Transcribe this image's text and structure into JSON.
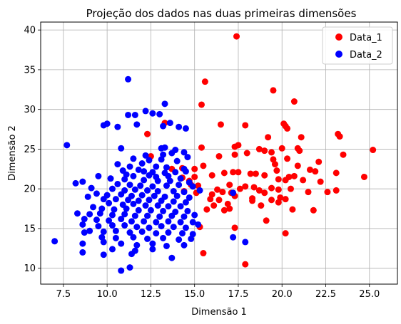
{
  "chart_data": {
    "type": "scatter",
    "title": "Projeção dos dados nas duas primeiras dimensões",
    "xlabel": "Dimensão 1",
    "ylabel": "Dimensão 2",
    "xlim": [
      6.2,
      26.6
    ],
    "ylim": [
      8.0,
      41.0
    ],
    "xticks": [
      7.5,
      10.0,
      12.5,
      15.0,
      17.5,
      20.0,
      22.5,
      25.0
    ],
    "xtick_labels": [
      "7.5",
      "10.0",
      "12.5",
      "15.0",
      "17.5",
      "20.0",
      "22.5",
      "25.0"
    ],
    "yticks": [
      10,
      15,
      20,
      25,
      30,
      35,
      40
    ],
    "ytick_labels": [
      "10",
      "15",
      "20",
      "25",
      "30",
      "35",
      "40"
    ],
    "grid": true,
    "legend_position": "top-right",
    "series": [
      {
        "name": "Data_1",
        "color": "#ff0000",
        "points": [
          [
            17.4,
            39.2
          ],
          [
            15.6,
            33.5
          ],
          [
            19.5,
            32.4
          ],
          [
            20.7,
            31.0
          ],
          [
            15.4,
            30.6
          ],
          [
            20.2,
            27.9
          ],
          [
            16.5,
            28.1
          ],
          [
            13.3,
            28.3
          ],
          [
            12.3,
            26.9
          ],
          [
            17.9,
            28.0
          ],
          [
            20.1,
            28.2
          ],
          [
            20.3,
            27.6
          ],
          [
            19.2,
            26.5
          ],
          [
            21.1,
            26.5
          ],
          [
            23.2,
            26.9
          ],
          [
            23.3,
            26.6
          ],
          [
            17.5,
            25.5
          ],
          [
            17.3,
            25.3
          ],
          [
            15.4,
            25.2
          ],
          [
            19.0,
            24.8
          ],
          [
            19.4,
            24.6
          ],
          [
            20.0,
            25.1
          ],
          [
            20.9,
            25.1
          ],
          [
            21.0,
            24.8
          ],
          [
            18.7,
            25.0
          ],
          [
            23.5,
            24.3
          ],
          [
            25.2,
            24.9
          ],
          [
            18.0,
            24.5
          ],
          [
            17.3,
            24.3
          ],
          [
            16.4,
            24.1
          ],
          [
            12.5,
            24.1
          ],
          [
            19.5,
            23.7
          ],
          [
            20.3,
            23.8
          ],
          [
            19.6,
            23.1
          ],
          [
            22.1,
            23.4
          ],
          [
            20.9,
            22.9
          ],
          [
            15.5,
            22.9
          ],
          [
            14.3,
            22.6
          ],
          [
            15.0,
            22.5
          ],
          [
            13.7,
            22.5
          ],
          [
            17.2,
            22.1
          ],
          [
            17.5,
            22.1
          ],
          [
            16.7,
            22.0
          ],
          [
            19.7,
            22.3
          ],
          [
            21.9,
            22.2
          ],
          [
            21.6,
            22.4
          ],
          [
            18.2,
            21.9
          ],
          [
            18.5,
            21.9
          ],
          [
            19.0,
            21.7
          ],
          [
            20.7,
            21.6
          ],
          [
            20.4,
            21.5
          ],
          [
            16.0,
            21.7
          ],
          [
            15.0,
            21.5
          ],
          [
            14.3,
            21.4
          ],
          [
            14.7,
            21.0
          ],
          [
            19.8,
            21.2
          ],
          [
            20.2,
            21.1
          ],
          [
            23.1,
            22.0
          ],
          [
            24.7,
            21.5
          ],
          [
            21.2,
            21.1
          ],
          [
            22.2,
            20.9
          ],
          [
            14.8,
            20.5
          ],
          [
            15.2,
            20.4
          ],
          [
            17.0,
            20.5
          ],
          [
            17.9,
            20.3
          ],
          [
            18.4,
            20.2
          ],
          [
            19.4,
            20.1
          ],
          [
            19.8,
            19.9
          ],
          [
            20.5,
            20.0
          ],
          [
            17.6,
            20.0
          ],
          [
            16.3,
            19.9
          ],
          [
            16.6,
            19.6
          ],
          [
            17.1,
            19.5
          ],
          [
            18.7,
            19.8
          ],
          [
            19.0,
            19.5
          ],
          [
            21.5,
            19.6
          ],
          [
            22.6,
            19.6
          ],
          [
            23.1,
            19.8
          ],
          [
            15.1,
            19.5
          ],
          [
            14.4,
            19.7
          ],
          [
            16.0,
            19.3
          ],
          [
            17.3,
            19.1
          ],
          [
            15.9,
            18.7
          ],
          [
            16.4,
            18.6
          ],
          [
            18.3,
            18.8
          ],
          [
            19.4,
            18.6
          ],
          [
            19.9,
            18.9
          ],
          [
            20.2,
            18.7
          ],
          [
            19.8,
            18.3
          ],
          [
            18.3,
            18.5
          ],
          [
            16.1,
            17.9
          ],
          [
            16.9,
            18.1
          ],
          [
            18.8,
            17.9
          ],
          [
            20.6,
            17.4
          ],
          [
            21.8,
            17.3
          ],
          [
            17.0,
            17.5
          ],
          [
            16.7,
            17.3
          ],
          [
            15.7,
            17.4
          ],
          [
            19.1,
            16.0
          ],
          [
            17.3,
            15.1
          ],
          [
            15.3,
            15.2
          ],
          [
            20.2,
            14.4
          ],
          [
            17.9,
            10.5
          ],
          [
            15.5,
            11.9
          ]
        ]
      },
      {
        "name": "Data_2",
        "color": "#0000ff",
        "points": [
          [
            11.2,
            33.8
          ],
          [
            13.3,
            30.7
          ],
          [
            11.2,
            29.3
          ],
          [
            11.6,
            29.3
          ],
          [
            12.2,
            29.8
          ],
          [
            12.6,
            29.5
          ],
          [
            13.0,
            29.4
          ],
          [
            9.8,
            28.0
          ],
          [
            10.0,
            28.2
          ],
          [
            10.6,
            27.8
          ],
          [
            11.7,
            28.1
          ],
          [
            13.2,
            27.9
          ],
          [
            13.6,
            28.3
          ],
          [
            14.1,
            27.8
          ],
          [
            14.5,
            27.6
          ],
          [
            7.7,
            25.5
          ],
          [
            10.8,
            25.1
          ],
          [
            13.1,
            25.1
          ],
          [
            13.3,
            25.2
          ],
          [
            13.9,
            24.9
          ],
          [
            14.4,
            24.6
          ],
          [
            12.2,
            24.2
          ],
          [
            13.2,
            24.3
          ],
          [
            13.7,
            24.5
          ],
          [
            14.6,
            24.0
          ],
          [
            11.5,
            23.8
          ],
          [
            12.4,
            23.6
          ],
          [
            13.1,
            23.7
          ],
          [
            14.0,
            23.5
          ],
          [
            12.0,
            23.2
          ],
          [
            10.6,
            23.1
          ],
          [
            11.3,
            22.8
          ],
          [
            12.8,
            22.8
          ],
          [
            13.4,
            22.7
          ],
          [
            14.4,
            22.5
          ],
          [
            10.9,
            22.3
          ],
          [
            11.8,
            22.4
          ],
          [
            12.1,
            22.2
          ],
          [
            12.6,
            22.1
          ],
          [
            13.3,
            22.0
          ],
          [
            13.9,
            22.1
          ],
          [
            14.5,
            22.2
          ],
          [
            11.1,
            21.8
          ],
          [
            11.5,
            21.6
          ],
          [
            12.4,
            21.7
          ],
          [
            12.8,
            21.5
          ],
          [
            13.5,
            21.6
          ],
          [
            14.2,
            21.3
          ],
          [
            9.5,
            21.6
          ],
          [
            10.2,
            21.3
          ],
          [
            11.0,
            21.2
          ],
          [
            12.1,
            21.1
          ],
          [
            12.9,
            21.0
          ],
          [
            13.6,
            21.0
          ],
          [
            14.7,
            20.8
          ],
          [
            8.6,
            20.9
          ],
          [
            8.2,
            20.7
          ],
          [
            10.6,
            20.6
          ],
          [
            11.3,
            20.5
          ],
          [
            11.9,
            20.4
          ],
          [
            12.6,
            20.3
          ],
          [
            13.4,
            20.4
          ],
          [
            14.1,
            20.5
          ],
          [
            14.9,
            20.3
          ],
          [
            9.1,
            20.1
          ],
          [
            10.3,
            20.0
          ],
          [
            11.0,
            19.8
          ],
          [
            11.6,
            19.9
          ],
          [
            12.3,
            19.8
          ],
          [
            12.9,
            19.7
          ],
          [
            13.8,
            19.7
          ],
          [
            14.4,
            19.6
          ],
          [
            15.3,
            19.8
          ],
          [
            17.2,
            19.5
          ],
          [
            9.4,
            19.4
          ],
          [
            10.0,
            19.2
          ],
          [
            10.8,
            19.3
          ],
          [
            11.4,
            19.1
          ],
          [
            12.0,
            19.2
          ],
          [
            12.7,
            19.1
          ],
          [
            13.3,
            19.0
          ],
          [
            14.0,
            19.1
          ],
          [
            14.7,
            18.9
          ],
          [
            8.9,
            19.0
          ],
          [
            9.8,
            18.7
          ],
          [
            10.5,
            18.7
          ],
          [
            11.2,
            18.6
          ],
          [
            11.8,
            18.5
          ],
          [
            12.4,
            18.6
          ],
          [
            13.1,
            18.5
          ],
          [
            13.8,
            18.4
          ],
          [
            14.5,
            18.3
          ],
          [
            10.1,
            18.2
          ],
          [
            10.9,
            18.0
          ],
          [
            11.5,
            18.1
          ],
          [
            12.2,
            17.9
          ],
          [
            12.9,
            17.9
          ],
          [
            13.5,
            17.8
          ],
          [
            14.2,
            17.8
          ],
          [
            9.2,
            17.7
          ],
          [
            9.7,
            17.5
          ],
          [
            10.4,
            17.4
          ],
          [
            11.1,
            17.5
          ],
          [
            11.8,
            17.3
          ],
          [
            12.5,
            17.3
          ],
          [
            13.2,
            17.2
          ],
          [
            13.9,
            17.1
          ],
          [
            14.6,
            17.2
          ],
          [
            8.3,
            16.9
          ],
          [
            9.0,
            16.8
          ],
          [
            9.6,
            16.9
          ],
          [
            10.3,
            16.7
          ],
          [
            11.0,
            16.8
          ],
          [
            11.6,
            16.6
          ],
          [
            12.3,
            16.6
          ],
          [
            13.0,
            16.5
          ],
          [
            13.7,
            16.6
          ],
          [
            14.4,
            16.5
          ],
          [
            15.0,
            16.7
          ],
          [
            8.7,
            16.2
          ],
          [
            9.4,
            16.1
          ],
          [
            10.1,
            16.0
          ],
          [
            10.8,
            16.2
          ],
          [
            11.4,
            15.9
          ],
          [
            12.1,
            15.9
          ],
          [
            12.8,
            15.8
          ],
          [
            13.5,
            15.9
          ],
          [
            14.2,
            15.8
          ],
          [
            14.9,
            15.8
          ],
          [
            8.6,
            15.5
          ],
          [
            9.5,
            15.3
          ],
          [
            10.3,
            15.4
          ],
          [
            11.0,
            15.4
          ],
          [
            11.7,
            15.2
          ],
          [
            12.4,
            15.1
          ],
          [
            13.1,
            15.3
          ],
          [
            13.8,
            15.2
          ],
          [
            14.5,
            15.1
          ],
          [
            15.2,
            15.5
          ],
          [
            8.7,
            14.5
          ],
          [
            9.0,
            14.7
          ],
          [
            9.8,
            14.6
          ],
          [
            10.5,
            14.7
          ],
          [
            11.3,
            14.5
          ],
          [
            12.0,
            14.6
          ],
          [
            12.8,
            14.4
          ],
          [
            13.5,
            14.5
          ],
          [
            14.3,
            14.4
          ],
          [
            14.9,
            14.3
          ],
          [
            9.7,
            13.9
          ],
          [
            10.5,
            13.8
          ],
          [
            11.5,
            13.9
          ],
          [
            12.3,
            13.7
          ],
          [
            13.2,
            13.8
          ],
          [
            14.1,
            13.6
          ],
          [
            14.8,
            13.7
          ],
          [
            17.2,
            13.9
          ],
          [
            7.0,
            13.4
          ],
          [
            8.6,
            13.1
          ],
          [
            9.8,
            13.3
          ],
          [
            10.8,
            13.1
          ],
          [
            11.7,
            12.9
          ],
          [
            12.6,
            13.1
          ],
          [
            13.4,
            12.8
          ],
          [
            14.4,
            12.9
          ],
          [
            17.9,
            13.3
          ],
          [
            8.6,
            12.0
          ],
          [
            10.3,
            12.4
          ],
          [
            11.6,
            12.2
          ],
          [
            12.6,
            12.4
          ],
          [
            9.8,
            11.7
          ],
          [
            11.4,
            11.8
          ],
          [
            13.7,
            11.3
          ],
          [
            11.3,
            10.1
          ],
          [
            10.8,
            9.7
          ]
        ]
      }
    ]
  }
}
